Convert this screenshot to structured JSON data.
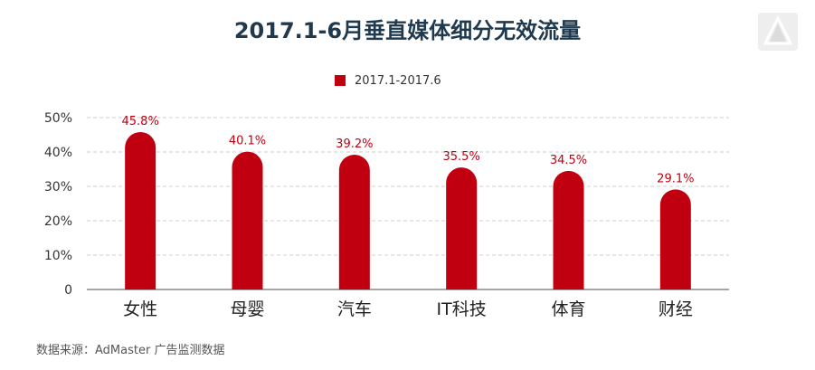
{
  "page": {
    "title": "2017.1-6月垂直媒体细分无效流量",
    "source": "数据来源：AdMaster 广告监测数据",
    "logo_icon": "admaster-logo-icon"
  },
  "colors": {
    "bar": "#c00010",
    "label": "#c00010",
    "title": "#1f3a4f",
    "grid": "#cccccc"
  },
  "chart_data": {
    "type": "bar",
    "title": "2017.1-6月垂直媒体细分无效流量",
    "xlabel": "",
    "ylabel": "",
    "categories": [
      "女性",
      "母婴",
      "汽车",
      "IT科技",
      "体育",
      "财经"
    ],
    "series": [
      {
        "name": "2017.1-2017.6",
        "values": [
          45.8,
          40.1,
          39.2,
          35.5,
          34.5,
          29.1
        ],
        "labels": [
          "45.8%",
          "40.1%",
          "39.2%",
          "35.5%",
          "34.5%",
          "29.1%"
        ]
      }
    ],
    "ylim": [
      0,
      50
    ],
    "yticks": [
      0,
      10,
      20,
      30,
      40,
      50
    ],
    "ytick_labels": [
      "0",
      "10%",
      "20%",
      "30%",
      "40%",
      "50%"
    ],
    "grid": true,
    "legend_position": "top-center"
  }
}
